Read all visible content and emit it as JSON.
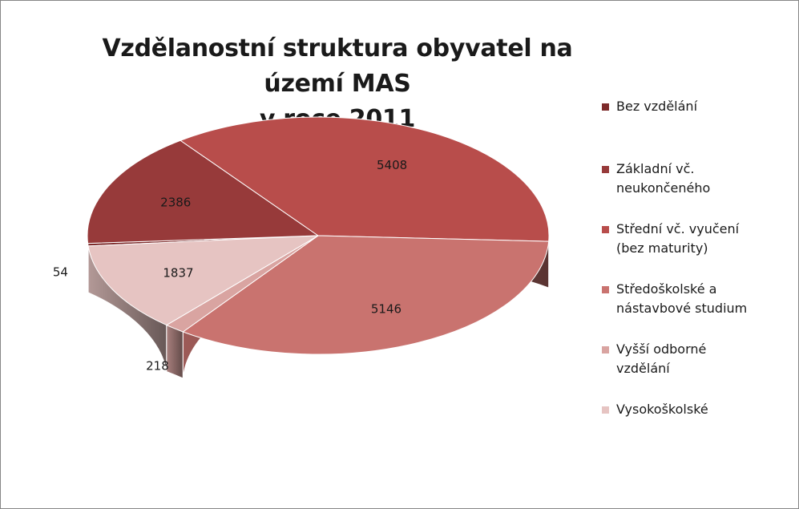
{
  "chart_data": {
    "type": "pie",
    "title": [
      "Vzdělanostní struktura obyvatel na území MAS",
      "v roce 2011"
    ],
    "three_d": true,
    "legend_position": "right",
    "categories": [
      "Bez vzdělání",
      "Základní vč.\nneukončeného",
      "Střední vč. vyučení\n(bez maturity)",
      "Středoškolské a\nnástavbové studium",
      "Vyšší odborné\nvzdělání",
      "Vysokoškolské"
    ],
    "values": [
      54,
      2386,
      5408,
      5146,
      218,
      1837
    ],
    "colors": [
      "#7d2a2a",
      "#973a3a",
      "#b84d4b",
      "#c9736f",
      "#d9a4a1",
      "#e6c4c2"
    ],
    "data_labels": [
      "54",
      "2386",
      "5408",
      "5146",
      "218",
      "1837"
    ]
  }
}
